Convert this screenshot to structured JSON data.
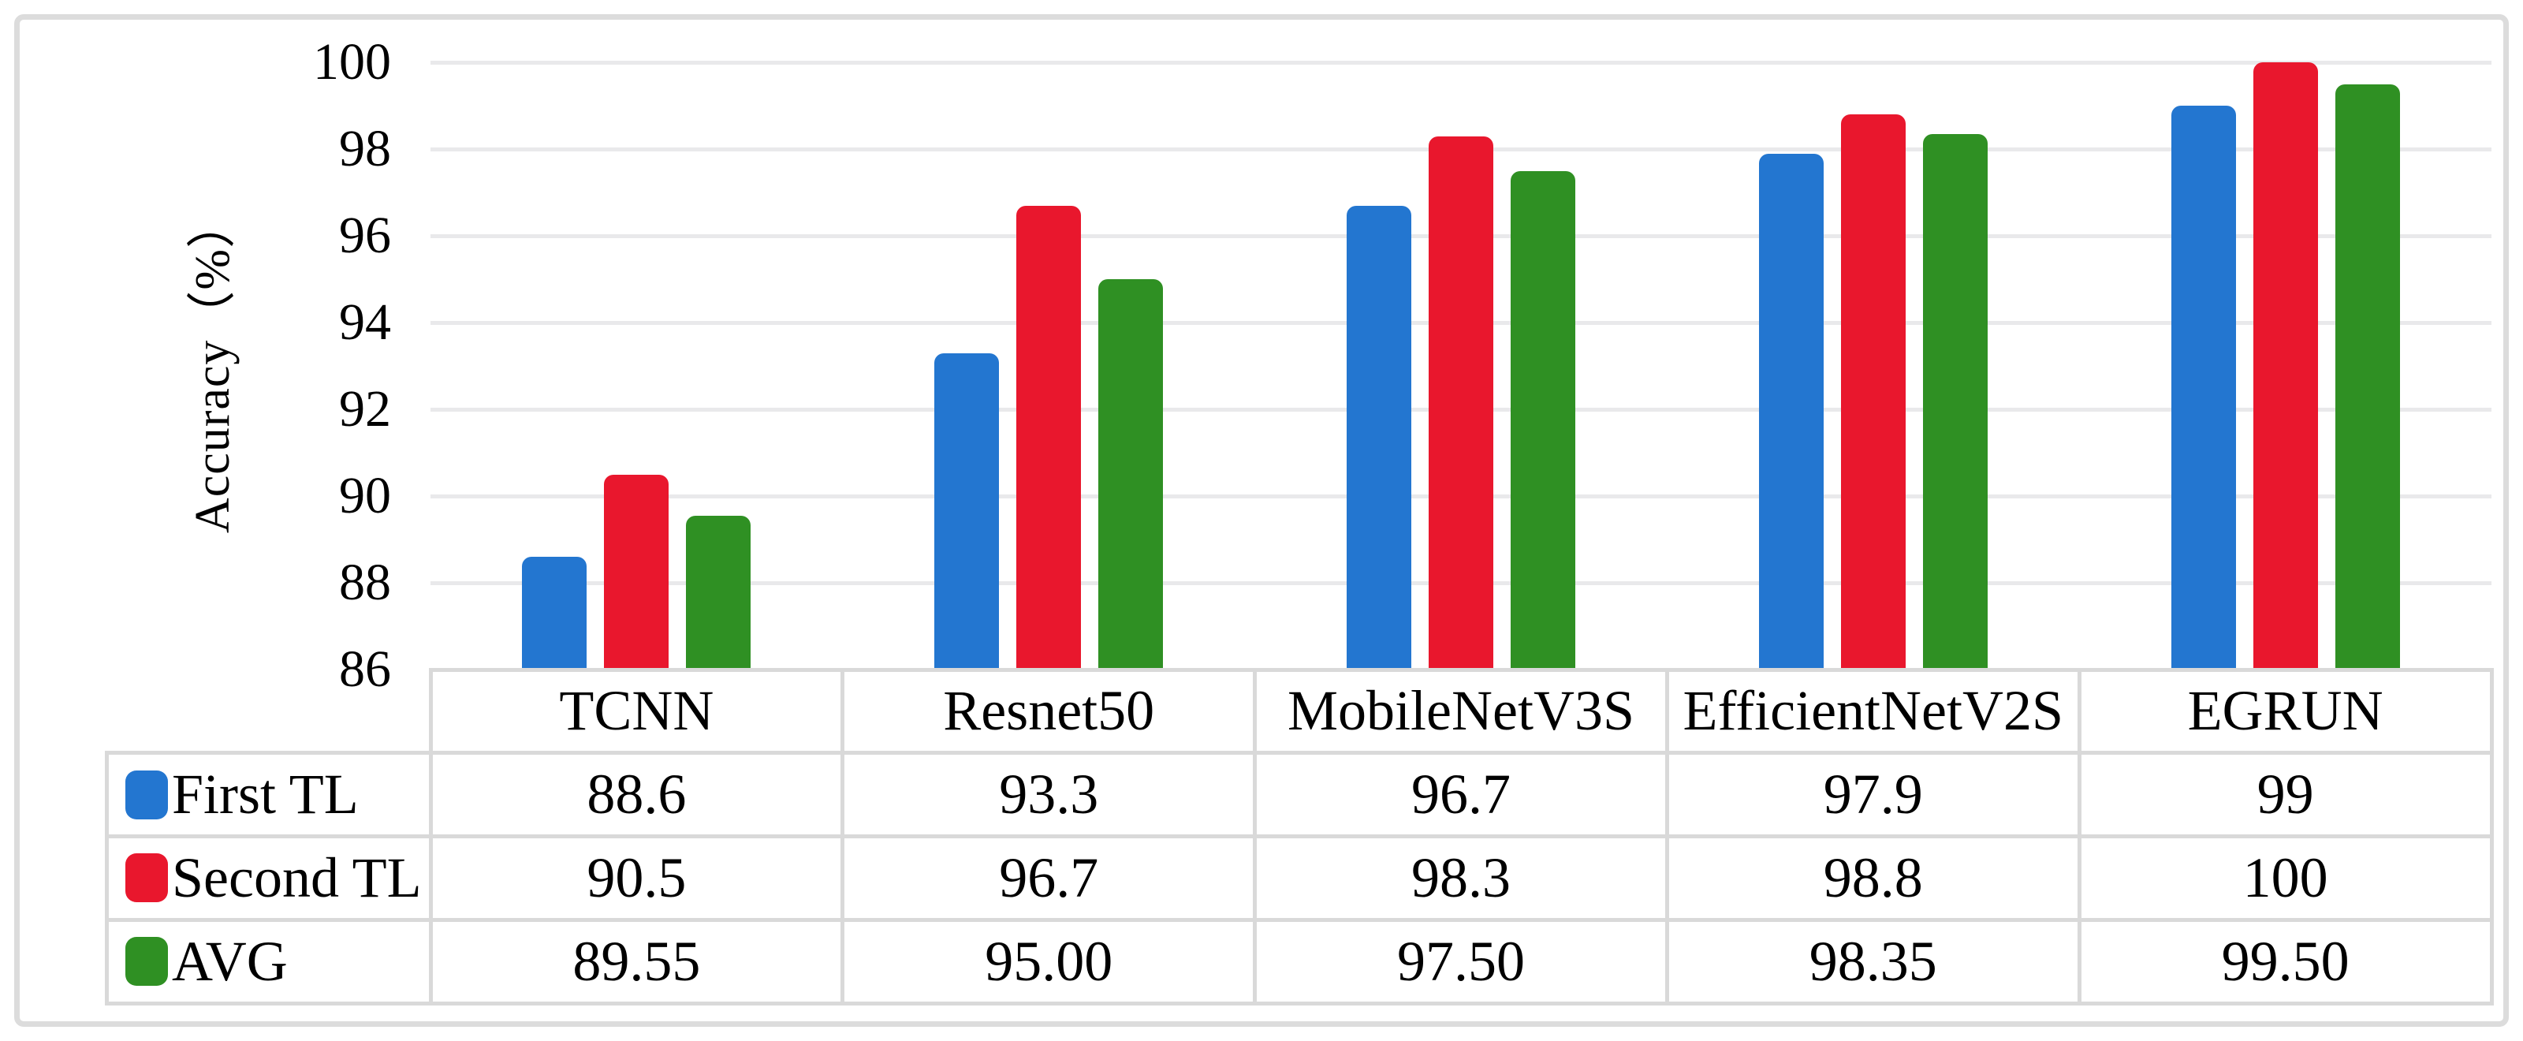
{
  "style": {
    "grid_color": "#e9e9eb",
    "table_border_color": "#d9d9d9",
    "figure_border_color": "#dcdcdc",
    "text_color": "#000000",
    "background_color": "#ffffff"
  },
  "chart_data": {
    "type": "bar",
    "categories": [
      "TCNN",
      "Resnet50",
      "MobileNetV3S",
      "EfficientNetV2S",
      "EGRUN"
    ],
    "series": [
      {
        "name": "First TL",
        "color": "#2376d0",
        "values": [
          88.6,
          93.3,
          96.7,
          97.9,
          99
        ],
        "display": [
          "88.6",
          "93.3",
          "96.7",
          "97.9",
          "99"
        ]
      },
      {
        "name": "Second TL",
        "color": "#e9172d",
        "values": [
          90.5,
          96.7,
          98.3,
          98.8,
          100
        ],
        "display": [
          "90.5",
          "96.7",
          "98.3",
          "98.8",
          "100"
        ]
      },
      {
        "name": "AVG",
        "color": "#2f9023",
        "values": [
          89.55,
          95.0,
          97.5,
          98.35,
          99.5
        ],
        "display": [
          "89.55",
          "95.00",
          "97.50",
          "98.35",
          "99.50"
        ]
      }
    ],
    "ylabel": "Accuracy（%）",
    "ylim": [
      86,
      100
    ],
    "ytick_step": 2,
    "yticks": [
      86,
      88,
      90,
      92,
      94,
      96,
      98,
      100
    ],
    "grid": true,
    "legend_position": "data-table-left",
    "data_table_shown": true
  }
}
